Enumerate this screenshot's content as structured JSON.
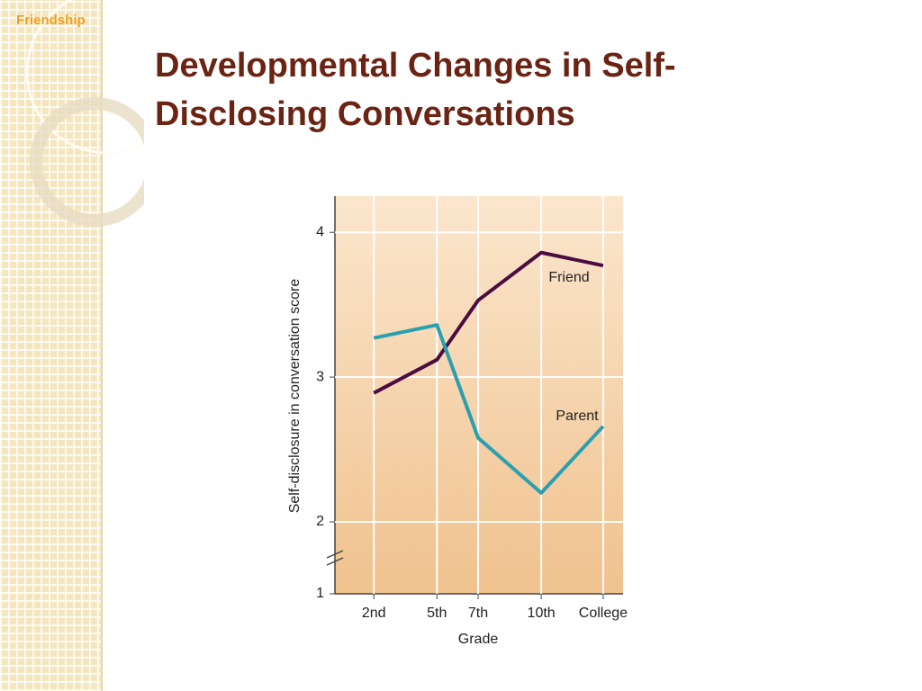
{
  "header": {
    "tag": "Friendship",
    "title": "Developmental Changes in Self-Disclosing Conversations"
  },
  "chart_data": {
    "type": "line",
    "x_label": "Grade",
    "y_label": "Self-disclosure in conversation score",
    "categories": [
      "2nd",
      "5th",
      "7th",
      "10th",
      "College"
    ],
    "series": [
      {
        "name": "Friend",
        "color": "#4b0c42",
        "values": [
          2.89,
          3.12,
          3.53,
          3.86,
          3.77
        ]
      },
      {
        "name": "Parent",
        "color": "#2a9fb0",
        "values": [
          3.27,
          3.36,
          2.58,
          2.2,
          2.66
        ]
      }
    ],
    "ylim": [
      1,
      4.25
    ],
    "yticks": [
      1,
      2,
      3,
      4
    ],
    "axis_break": [
      1,
      2
    ],
    "grid": true
  }
}
